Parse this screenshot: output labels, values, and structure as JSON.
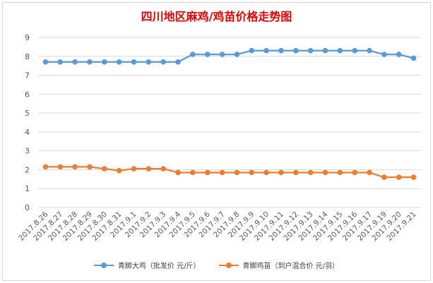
{
  "chart_data": {
    "type": "line",
    "title": "四川地区麻鸡/鸡苗价格走势图",
    "categories": [
      "2017.8.26",
      "2017.8.27",
      "2017.8.28",
      "2017.8.29",
      "2017.8.30",
      "2017.8.31",
      "2017.9.1",
      "2017.9.2",
      "2017.9.3",
      "2017.9.4",
      "2017.9.5",
      "2017.9.6",
      "2017.9.7",
      "2017.9.8",
      "2017.9.9",
      "2017.9.10",
      "2017.9.11",
      "2017.9.12",
      "2017.9.13",
      "2017.9.14",
      "2017.9.15",
      "2017.9.16",
      "2017.9.17",
      "2017.9.19",
      "2017.9.20",
      "2017.9.21"
    ],
    "series": [
      {
        "name": "青脚大鸡（批发价 元/斤）",
        "color": "#5b9bd5",
        "values": [
          7.7,
          7.7,
          7.7,
          7.7,
          7.7,
          7.7,
          7.7,
          7.7,
          7.7,
          7.7,
          8.1,
          8.1,
          8.1,
          8.1,
          8.3,
          8.3,
          8.3,
          8.3,
          8.3,
          8.3,
          8.3,
          8.3,
          8.3,
          8.1,
          8.1,
          7.9
        ]
      },
      {
        "name": "青脚鸡苗（到户混合价 元/羽）",
        "color": "#ed7d31",
        "values": [
          2.15,
          2.15,
          2.15,
          2.15,
          2.05,
          1.95,
          2.05,
          2.05,
          2.05,
          1.85,
          1.85,
          1.85,
          1.85,
          1.85,
          1.85,
          1.85,
          1.85,
          1.85,
          1.85,
          1.85,
          1.85,
          1.85,
          1.85,
          1.6,
          1.6,
          1.6
        ]
      }
    ],
    "ylim": [
      0,
      9
    ],
    "yticks": [
      0,
      1,
      2,
      3,
      4,
      5,
      6,
      7,
      8,
      9
    ],
    "xlabel": "",
    "ylabel": "",
    "grid": true,
    "legend": "bottom"
  }
}
